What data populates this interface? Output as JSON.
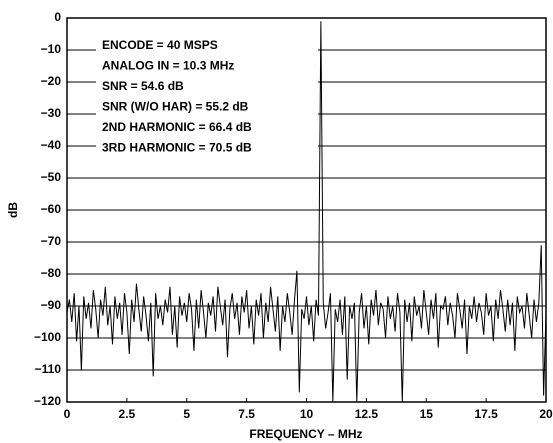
{
  "chart_data": {
    "type": "line",
    "xlabel": "FREQUENCY – MHz",
    "ylabel": "dB",
    "annotations": [
      "ENCODE = 40 MSPS",
      "ANALOG IN = 10.3 MHz",
      "SNR = 54.6 dB",
      "SNR (W/O HAR) = 55.2 dB",
      "2ND HARMONIC = 66.4 dB",
      "3RD HARMONIC = 70.5 dB"
    ],
    "x": [
      0,
      0.1,
      0.2,
      0.3,
      0.4,
      0.5,
      0.6,
      0.7,
      0.8,
      0.9,
      1,
      1.1,
      1.2,
      1.3,
      1.4,
      1.5,
      1.6,
      1.7,
      1.8,
      1.9,
      2,
      2.1,
      2.2,
      2.3,
      2.4,
      2.5,
      2.6,
      2.7,
      2.8,
      2.9,
      3,
      3.1,
      3.2,
      3.3,
      3.4,
      3.5,
      3.6,
      3.7,
      3.8,
      3.9,
      4,
      4.1,
      4.2,
      4.3,
      4.4,
      4.5,
      4.6,
      4.7,
      4.8,
      4.9,
      5,
      5.1,
      5.2,
      5.3,
      5.4,
      5.5,
      5.6,
      5.7,
      5.8,
      5.9,
      6,
      6.1,
      6.2,
      6.3,
      6.4,
      6.5,
      6.6,
      6.7,
      6.8,
      6.9,
      7,
      7.1,
      7.2,
      7.3,
      7.4,
      7.5,
      7.6,
      7.7,
      7.8,
      7.9,
      8,
      8.1,
      8.2,
      8.3,
      8.4,
      8.5,
      8.6,
      8.7,
      8.8,
      8.9,
      9,
      9.1,
      9.2,
      9.3,
      9.4,
      9.5,
      9.6,
      9.7,
      9.8,
      9.9,
      10,
      10.1,
      10.2,
      10.3,
      10.4,
      10.5,
      10.6,
      10.7,
      10.8,
      10.9,
      11,
      11.1,
      11.2,
      11.3,
      11.4,
      11.5,
      11.6,
      11.7,
      11.8,
      11.9,
      12,
      12.1,
      12.2,
      12.3,
      12.4,
      12.5,
      12.6,
      12.7,
      12.8,
      12.9,
      13,
      13.1,
      13.2,
      13.3,
      13.4,
      13.5,
      13.6,
      13.7,
      13.8,
      13.9,
      14,
      14.1,
      14.2,
      14.3,
      14.4,
      14.5,
      14.6,
      14.7,
      14.8,
      14.9,
      15,
      15.1,
      15.2,
      15.3,
      15.4,
      15.5,
      15.6,
      15.7,
      15.8,
      15.9,
      16,
      16.1,
      16.2,
      16.3,
      16.4,
      16.5,
      16.6,
      16.7,
      16.8,
      16.9,
      17,
      17.1,
      17.2,
      17.3,
      17.4,
      17.5,
      17.6,
      17.7,
      17.8,
      17.9,
      18,
      18.1,
      18.2,
      18.3,
      18.4,
      18.5,
      18.6,
      18.7,
      18.8,
      18.9,
      19,
      19.1,
      19.2,
      19.3,
      19.4,
      19.5,
      19.6,
      19.7,
      19.8,
      19.9,
      20
    ],
    "values": [
      -92,
      -88,
      -95,
      -86,
      -101,
      -90,
      -110,
      -87,
      -94,
      -89,
      -97,
      -85,
      -91,
      -100,
      -88,
      -93,
      -84,
      -96,
      -90,
      -102,
      -87,
      -94,
      -89,
      -99,
      -86,
      -92,
      -105,
      -88,
      -95,
      -83,
      -91,
      -98,
      -87,
      -93,
      -101,
      -89,
      -112,
      -86,
      -94,
      -90,
      -96,
      -88,
      -92,
      -84,
      -99,
      -90,
      -103,
      -87,
      -93,
      -89,
      -95,
      -86,
      -91,
      -104,
      -88,
      -97,
      -85,
      -92,
      -100,
      -89,
      -93,
      -87,
      -98,
      -84,
      -90,
      -96,
      -88,
      -106,
      -91,
      -86,
      -94,
      -89,
      -99,
      -87,
      -92,
      -85,
      -97,
      -90,
      -102,
      -88,
      -93,
      -86,
      -100,
      -89,
      -95,
      -84,
      -91,
      -98,
      -87,
      -104,
      -90,
      -95,
      -86,
      -92,
      -99,
      -88,
      -79,
      -117,
      -91,
      -94,
      -87,
      -96,
      -90,
      -101,
      -88,
      -93,
      -1,
      -89,
      -97,
      -92,
      -86,
      -120,
      -91,
      -95,
      -88,
      -99,
      -87,
      -113,
      -90,
      -94,
      -89,
      -120,
      -92,
      -86,
      -97,
      -90,
      -102,
      -88,
      -93,
      -85,
      -96,
      -89,
      -91,
      -100,
      -87,
      -94,
      -90,
      -98,
      -86,
      -92,
      -120,
      -88,
      -95,
      -89,
      -101,
      -87,
      -93,
      -90,
      -97,
      -85,
      -92,
      -99,
      -88,
      -94,
      -86,
      -103,
      -90,
      -91,
      -87,
      -96,
      -89,
      -93,
      -100,
      -86,
      -91,
      -97,
      -88,
      -105,
      -90,
      -94,
      -87,
      -95,
      -89,
      -92,
      -99,
      -86,
      -93,
      -90,
      -101,
      -88,
      -94,
      -85,
      -91,
      -98,
      -88,
      -96,
      -89,
      -104,
      -87,
      -92,
      -90,
      -97,
      -86,
      -93,
      -100,
      -88,
      -95,
      -89,
      -71,
      -118,
      -92
    ],
    "color": "#000000",
    "xlim": [
      0,
      20
    ],
    "xticks": [
      0,
      2.5,
      5,
      7.5,
      10,
      12.5,
      15,
      17.5,
      20
    ],
    "ylim": [
      -120,
      0
    ],
    "yticks": [
      0,
      {
        "value": -10,
        "label": "−10"
      },
      {
        "value": -20,
        "label": "−20"
      },
      {
        "value": -30,
        "label": "−30"
      },
      {
        "value": -40,
        "label": "−40"
      },
      {
        "value": -50,
        "label": "−50"
      },
      {
        "value": -60,
        "label": "−60"
      },
      {
        "value": -70,
        "label": "−70"
      },
      {
        "value": -80,
        "label": "−80"
      },
      {
        "value": -90,
        "label": "−90"
      },
      {
        "value": -100,
        "label": "−100"
      },
      {
        "value": -110,
        "label": "−110"
      },
      {
        "value": -120,
        "label": "−120"
      }
    ],
    "grid": true
  }
}
